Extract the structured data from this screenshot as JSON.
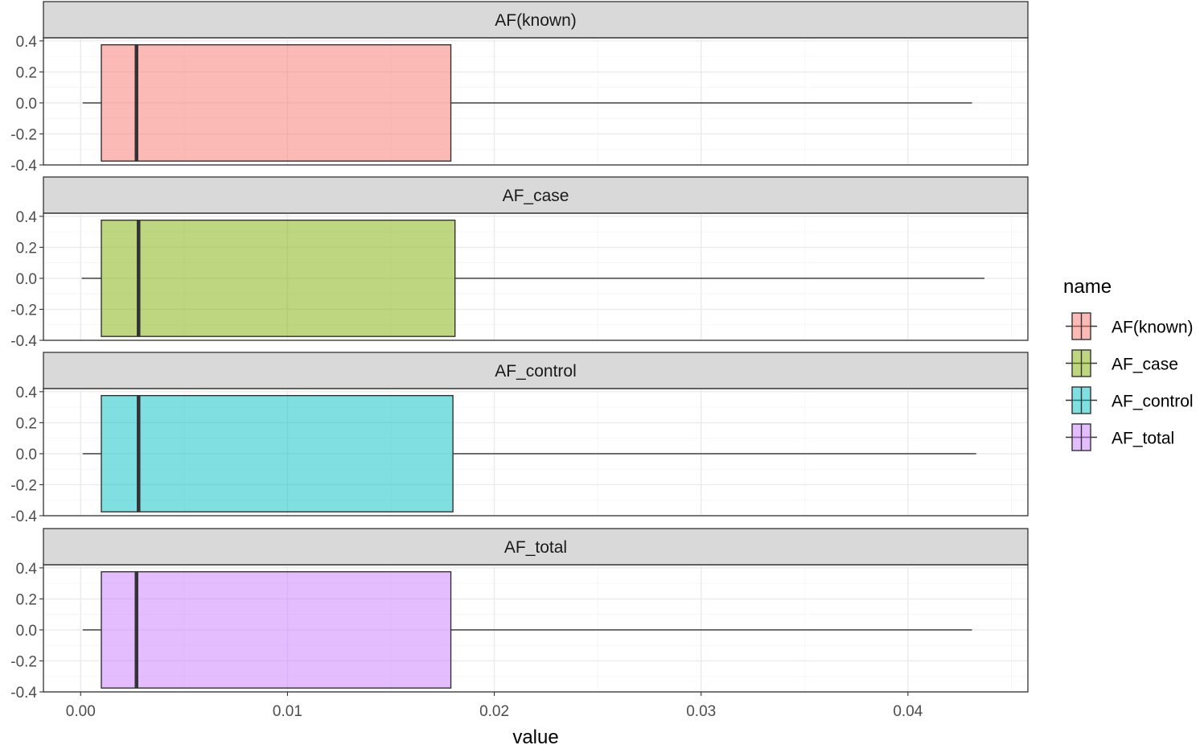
{
  "chart_data": {
    "type": "boxplot",
    "facet_labels": [
      "AF(known)",
      "AF_case",
      "AF_control",
      "AF_total"
    ],
    "xlabel": "value",
    "ylabel": "",
    "xlim": [
      -0.0018,
      0.0458
    ],
    "xticks": [
      0.0,
      0.01,
      0.02,
      0.03,
      0.04
    ],
    "xtick_labels": [
      "0.00",
      "0.01",
      "0.02",
      "0.03",
      "0.04"
    ],
    "ylim": [
      -0.4,
      0.42
    ],
    "yticks": [
      0.4,
      0.2,
      0.0,
      -0.2,
      -0.4
    ],
    "ytick_labels": [
      "0.4",
      "0.2",
      "0.0",
      "-0.2",
      "-0.4"
    ],
    "box_half_width": 0.375,
    "grid": true,
    "legend": {
      "title": "name",
      "position": "right",
      "entries": [
        "AF(known)",
        "AF_case",
        "AF_control",
        "AF_total"
      ]
    },
    "series": [
      {
        "name": "AF(known)",
        "color": "#F8766D",
        "whisker_low": 0.0001,
        "q1": 0.001,
        "median": 0.0027,
        "q3": 0.0179,
        "whisker_high": 0.0431
      },
      {
        "name": "AF_case",
        "color": "#7CAE00",
        "whisker_low": 5e-05,
        "q1": 0.001,
        "median": 0.0028,
        "q3": 0.0181,
        "whisker_high": 0.0437
      },
      {
        "name": "AF_control",
        "color": "#00BFC4",
        "whisker_low": 0.0001,
        "q1": 0.001,
        "median": 0.0028,
        "q3": 0.018,
        "whisker_high": 0.0433
      },
      {
        "name": "AF_total",
        "color": "#C77CFF",
        "whisker_low": 0.0001,
        "q1": 0.001,
        "median": 0.0027,
        "q3": 0.0179,
        "whisker_high": 0.0431
      }
    ]
  }
}
